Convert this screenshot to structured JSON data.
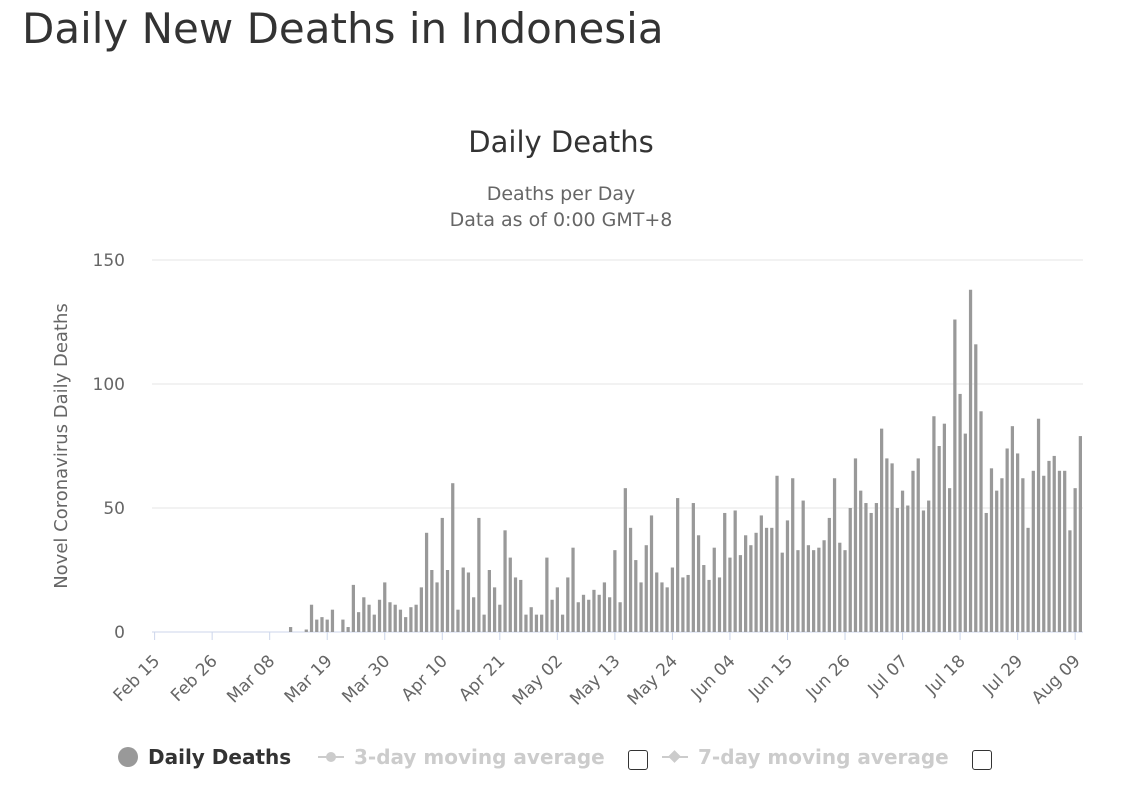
{
  "page": {
    "title": "Daily New Deaths in Indonesia"
  },
  "legend": {
    "items": [
      {
        "label": "Daily Deaths",
        "state": "on",
        "icon": "circle-icon"
      },
      {
        "label": "3-day moving average",
        "state": "off",
        "icon": "line-circle-icon"
      },
      {
        "label": "7-day moving average",
        "state": "off",
        "icon": "line-diamond-icon"
      }
    ]
  },
  "colors": {
    "bar": "#999999",
    "grid": "#e6e6e6",
    "axis_text": "#666666",
    "legend_off": "#cccccc"
  },
  "chart_data": {
    "type": "bar",
    "title": "Daily Deaths",
    "subtitle_lines": [
      "Deaths per Day",
      "Data as of 0:00 GMT+8"
    ],
    "xlabel": "",
    "ylabel": "Novel Coronavirus Daily Deaths",
    "ylim": [
      0,
      150
    ],
    "yticks": [
      0,
      50,
      100,
      150
    ],
    "grid": true,
    "legend_position": "bottom",
    "x_start": "Feb 15",
    "x_tick_labels": [
      "Feb 15",
      "Feb 26",
      "Mar 08",
      "Mar 19",
      "Mar 30",
      "Apr 10",
      "Apr 21",
      "May 02",
      "May 13",
      "May 24",
      "Jun 04",
      "Jun 15",
      "Jun 26",
      "Jul 07",
      "Jul 18",
      "Jul 29",
      "Aug 09"
    ],
    "series": [
      {
        "name": "Daily Deaths",
        "values": [
          0,
          0,
          0,
          0,
          0,
          0,
          0,
          0,
          0,
          0,
          0,
          0,
          0,
          0,
          0,
          0,
          0,
          0,
          0,
          0,
          0,
          0,
          0,
          0,
          0,
          0,
          2,
          0,
          0,
          1,
          11,
          5,
          6,
          5,
          9,
          0,
          5,
          2,
          19,
          8,
          14,
          11,
          7,
          13,
          20,
          12,
          11,
          9,
          6,
          10,
          11,
          18,
          40,
          25,
          20,
          46,
          25,
          60,
          9,
          26,
          24,
          14,
          46,
          7,
          25,
          18,
          11,
          41,
          30,
          22,
          21,
          7,
          10,
          7,
          7,
          30,
          13,
          18,
          7,
          22,
          34,
          12,
          15,
          13,
          17,
          15,
          20,
          14,
          33,
          12,
          58,
          42,
          29,
          20,
          35,
          47,
          24,
          20,
          18,
          26,
          54,
          22,
          23,
          52,
          39,
          27,
          21,
          34,
          22,
          48,
          30,
          49,
          31,
          39,
          35,
          40,
          47,
          42,
          42,
          63,
          32,
          45,
          62,
          33,
          53,
          35,
          33,
          34,
          37,
          46,
          62,
          36,
          33,
          50,
          70,
          57,
          52,
          48,
          52,
          82,
          70,
          68,
          50,
          57,
          51,
          65,
          70,
          49,
          53,
          87,
          75,
          84,
          58,
          126,
          96,
          80,
          138,
          116,
          89,
          48,
          66,
          57,
          62,
          74,
          83,
          72,
          62,
          42,
          65,
          86,
          63,
          69,
          71,
          65,
          65,
          41,
          58,
          79
        ]
      }
    ]
  }
}
